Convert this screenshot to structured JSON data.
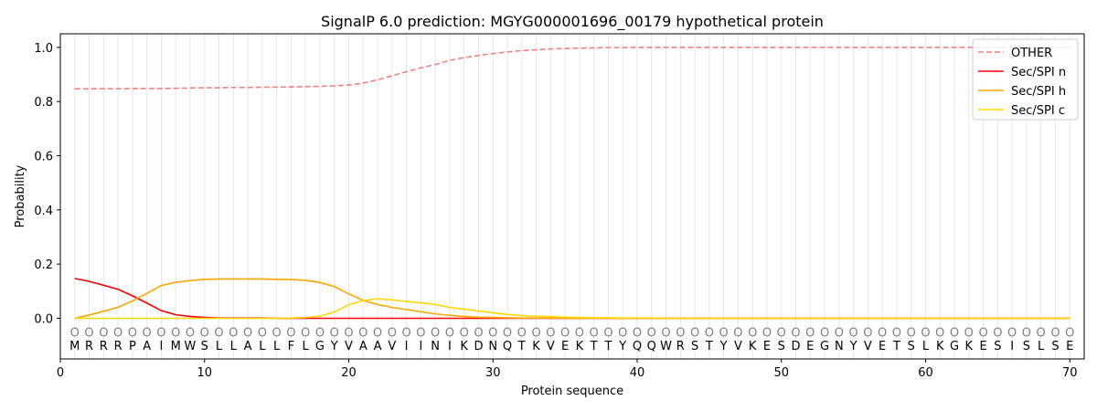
{
  "chart_data": {
    "type": "line",
    "title": "SignalP 6.0 prediction: MGYG000001696_00179 hypothetical protein",
    "xlabel": "Protein sequence",
    "ylabel": "Probability",
    "xlim": [
      0,
      71
    ],
    "ylim": [
      -0.15,
      1.05
    ],
    "xticks": [
      0,
      10,
      20,
      30,
      40,
      50,
      60,
      70
    ],
    "yticks": [
      0.0,
      0.2,
      0.4,
      0.6,
      0.8,
      1.0
    ],
    "xtick_labels": [
      "0",
      "10",
      "20",
      "30",
      "40",
      "50",
      "60",
      "70"
    ],
    "ytick_labels": [
      "0.0",
      "0.2",
      "0.4",
      "0.6",
      "0.8",
      "1.0"
    ],
    "grid": "vertical lines at each residue",
    "legend_position": "top-right",
    "sequence": [
      "M",
      "R",
      "R",
      "R",
      "P",
      "A",
      "I",
      "M",
      "W",
      "S",
      "L",
      "L",
      "A",
      "L",
      "L",
      "F",
      "L",
      "G",
      "Y",
      "V",
      "A",
      "A",
      "V",
      "I",
      "I",
      "N",
      "I",
      "K",
      "D",
      "N",
      "Q",
      "T",
      "K",
      "V",
      "E",
      "K",
      "T",
      "T",
      "Y",
      "Q",
      "Q",
      "W",
      "R",
      "S",
      "T",
      "Y",
      "V",
      "K",
      "E",
      "S",
      "D",
      "E",
      "G",
      "N",
      "Y",
      "V",
      "E",
      "T",
      "S",
      "L",
      "K",
      "G",
      "K",
      "E",
      "S",
      "I",
      "S",
      "L",
      "S",
      "E"
    ],
    "marker_label": "O",
    "series": [
      {
        "name": "OTHER",
        "color": "#f08080",
        "style": "dashed",
        "values": [
          0.847,
          0.847,
          0.847,
          0.847,
          0.848,
          0.848,
          0.848,
          0.849,
          0.85,
          0.851,
          0.851,
          0.852,
          0.852,
          0.853,
          0.853,
          0.854,
          0.855,
          0.856,
          0.858,
          0.861,
          0.868,
          0.88,
          0.895,
          0.91,
          0.924,
          0.937,
          0.952,
          0.962,
          0.97,
          0.977,
          0.983,
          0.988,
          0.991,
          0.994,
          0.996,
          0.997,
          0.998,
          0.999,
          0.999,
          1.0,
          1.0,
          1.0,
          1.0,
          1.0,
          1.0,
          1.0,
          1.0,
          1.0,
          1.0,
          1.0,
          1.0,
          1.0,
          1.0,
          1.0,
          1.0,
          1.0,
          1.0,
          1.0,
          1.0,
          1.0,
          1.0,
          1.0,
          1.0,
          1.0,
          1.0,
          1.0,
          1.0,
          1.0,
          1.0,
          1.0
        ]
      },
      {
        "name": "Sec/SPI n",
        "color": "#ff0000",
        "style": "solid",
        "values": [
          0.147,
          0.136,
          0.122,
          0.107,
          0.083,
          0.056,
          0.028,
          0.013,
          0.007,
          0.003,
          0.001,
          0.001,
          0.001,
          0.001,
          0.0,
          0.0,
          0.0,
          0.0,
          0.0,
          0.0,
          0.0,
          0.0,
          0.0,
          0.0,
          0.0,
          0.0,
          0.0,
          0.0,
          0.0,
          0.0,
          0.0,
          0.0,
          0.0,
          0.0,
          0.0,
          0.0,
          0.0,
          0.0,
          0.0,
          0.0,
          0.0,
          0.0,
          0.0,
          0.0,
          0.0,
          0.0,
          0.0,
          0.0,
          0.0,
          0.0,
          0.0,
          0.0,
          0.0,
          0.0,
          0.0,
          0.0,
          0.0,
          0.0,
          0.0,
          0.0,
          0.0,
          0.0,
          0.0,
          0.0,
          0.0,
          0.0,
          0.0,
          0.0,
          0.0,
          0.0
        ]
      },
      {
        "name": "Sec/SPI h",
        "color": "#ffa500",
        "style": "solid",
        "values": [
          0.0,
          0.012,
          0.026,
          0.041,
          0.064,
          0.092,
          0.121,
          0.133,
          0.139,
          0.144,
          0.145,
          0.145,
          0.145,
          0.145,
          0.144,
          0.143,
          0.14,
          0.132,
          0.117,
          0.09,
          0.066,
          0.051,
          0.04,
          0.032,
          0.024,
          0.016,
          0.011,
          0.007,
          0.004,
          0.003,
          0.002,
          0.001,
          0.001,
          0.001,
          0.0,
          0.0,
          0.0,
          0.0,
          0.0,
          0.0,
          0.0,
          0.0,
          0.0,
          0.0,
          0.0,
          0.0,
          0.0,
          0.0,
          0.0,
          0.0,
          0.0,
          0.0,
          0.0,
          0.0,
          0.0,
          0.0,
          0.0,
          0.0,
          0.0,
          0.0,
          0.0,
          0.0,
          0.0,
          0.0,
          0.0,
          0.0,
          0.0,
          0.0,
          0.0,
          0.0
        ]
      },
      {
        "name": "Sec/SPI c",
        "color": "#ffd700",
        "style": "solid",
        "values": [
          0.0,
          0.0,
          0.0,
          0.0,
          0.0,
          0.0,
          0.0,
          0.0,
          0.0,
          0.0,
          0.0,
          0.0,
          0.0,
          0.0,
          0.0,
          0.001,
          0.003,
          0.008,
          0.023,
          0.05,
          0.066,
          0.072,
          0.068,
          0.062,
          0.057,
          0.051,
          0.04,
          0.033,
          0.027,
          0.02,
          0.014,
          0.01,
          0.008,
          0.006,
          0.004,
          0.003,
          0.002,
          0.002,
          0.001,
          0.001,
          0.001,
          0.0,
          0.0,
          0.0,
          0.0,
          0.0,
          0.0,
          0.0,
          0.0,
          0.0,
          0.0,
          0.0,
          0.0,
          0.0,
          0.0,
          0.0,
          0.0,
          0.0,
          0.0,
          0.0,
          0.0,
          0.0,
          0.0,
          0.0,
          0.0,
          0.0,
          0.0,
          0.0,
          0.0,
          0.0
        ]
      }
    ]
  }
}
